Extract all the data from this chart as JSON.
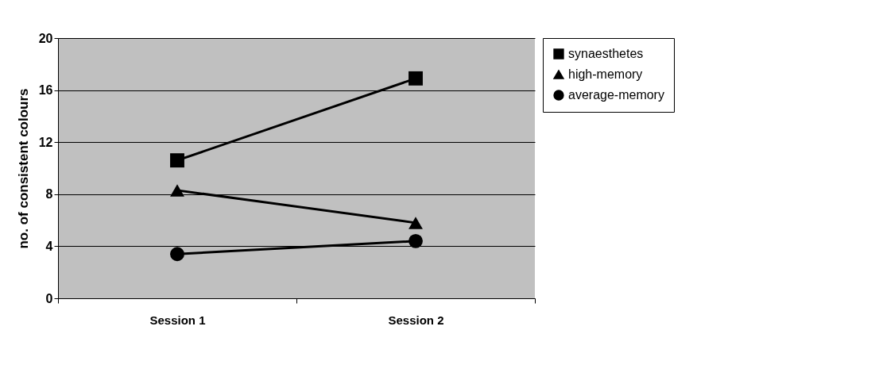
{
  "chart_data": {
    "type": "line",
    "ylabel": "no. of consistent colours",
    "categories": [
      "Session 1",
      "Session 2"
    ],
    "series": [
      {
        "name": "synaesthetes",
        "color": "#000000",
        "marker": "square",
        "values": [
          10.6,
          16.9
        ]
      },
      {
        "name": "high-memory",
        "color": "#000000",
        "marker": "triangle",
        "values": [
          8.3,
          5.8
        ]
      },
      {
        "name": "average-memory",
        "color": "#000000",
        "marker": "circle",
        "values": [
          3.4,
          4.4
        ]
      }
    ],
    "ylim": [
      0,
      20
    ],
    "yticks": [
      0,
      4,
      8,
      12,
      16,
      20
    ],
    "grid": "y",
    "legend": "right",
    "line_style": "solid"
  }
}
